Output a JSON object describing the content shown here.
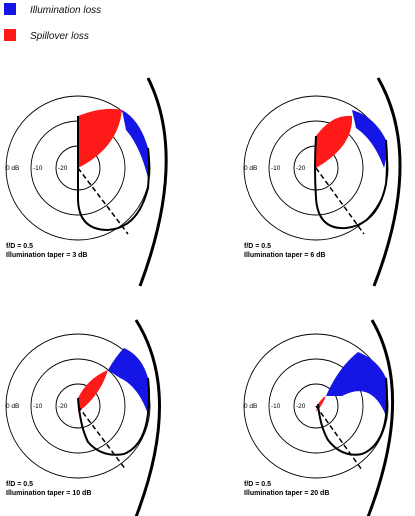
{
  "legend": [
    {
      "label": "Illumination loss",
      "color": "#1515e6"
    },
    {
      "label": "Spillover loss",
      "color": "#ff1a1a"
    }
  ],
  "ring_labels": [
    "0 dB",
    "-10",
    "-20"
  ],
  "panels": [
    {
      "fd": "f/D = 0.5",
      "taper": "Illumination taper = 3 dB"
    },
    {
      "fd": "f/D = 0.5",
      "taper": "Illumination taper = 6 dB"
    },
    {
      "fd": "f/D = 0.5",
      "taper": "Illumination taper = 10 dB"
    },
    {
      "fd": "f/D = 0.5",
      "taper": "Illumination taper = 20 dB"
    }
  ]
}
